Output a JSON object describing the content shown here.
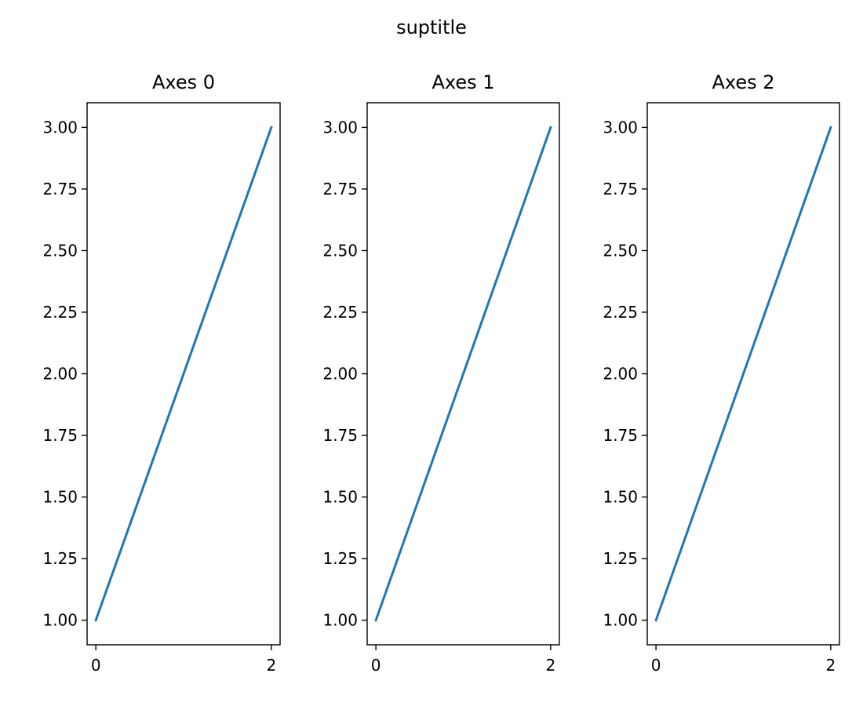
{
  "suptitle": "suptitle",
  "chart_data": [
    {
      "type": "line",
      "title": "Axes 0",
      "xlabel": "",
      "ylabel": "",
      "x": [
        0,
        1,
        2
      ],
      "series": [
        {
          "values": [
            1,
            2,
            3
          ],
          "color": "#1f77b4"
        }
      ],
      "xlim": [
        -0.1,
        2.1
      ],
      "ylim": [
        0.9,
        3.1
      ],
      "xticks": [
        0,
        2
      ],
      "xtick_labels": [
        "0",
        "2"
      ],
      "yticks": [
        1.0,
        1.25,
        1.5,
        1.75,
        2.0,
        2.25,
        2.5,
        2.75,
        3.0
      ],
      "ytick_labels": [
        "1.00",
        "1.25",
        "1.50",
        "1.75",
        "2.00",
        "2.25",
        "2.50",
        "2.75",
        "3.00"
      ],
      "grid": false
    },
    {
      "type": "line",
      "title": "Axes 1",
      "xlabel": "",
      "ylabel": "",
      "x": [
        0,
        1,
        2
      ],
      "series": [
        {
          "values": [
            1,
            2,
            3
          ],
          "color": "#1f77b4"
        }
      ],
      "xlim": [
        -0.1,
        2.1
      ],
      "ylim": [
        0.9,
        3.1
      ],
      "xticks": [
        0,
        2
      ],
      "xtick_labels": [
        "0",
        "2"
      ],
      "yticks": [
        1.0,
        1.25,
        1.5,
        1.75,
        2.0,
        2.25,
        2.5,
        2.75,
        3.0
      ],
      "ytick_labels": [
        "1.00",
        "1.25",
        "1.50",
        "1.75",
        "2.00",
        "2.25",
        "2.50",
        "2.75",
        "3.00"
      ],
      "grid": false
    },
    {
      "type": "line",
      "title": "Axes 2",
      "xlabel": "",
      "ylabel": "",
      "x": [
        0,
        1,
        2
      ],
      "series": [
        {
          "values": [
            1,
            2,
            3
          ],
          "color": "#1f77b4"
        }
      ],
      "xlim": [
        -0.1,
        2.1
      ],
      "ylim": [
        0.9,
        3.1
      ],
      "xticks": [
        0,
        2
      ],
      "xtick_labels": [
        "0",
        "2"
      ],
      "yticks": [
        1.0,
        1.25,
        1.5,
        1.75,
        2.0,
        2.25,
        2.5,
        2.75,
        3.0
      ],
      "ytick_labels": [
        "1.00",
        "1.25",
        "1.50",
        "1.75",
        "2.00",
        "2.25",
        "2.50",
        "2.75",
        "3.00"
      ],
      "grid": false
    }
  ]
}
